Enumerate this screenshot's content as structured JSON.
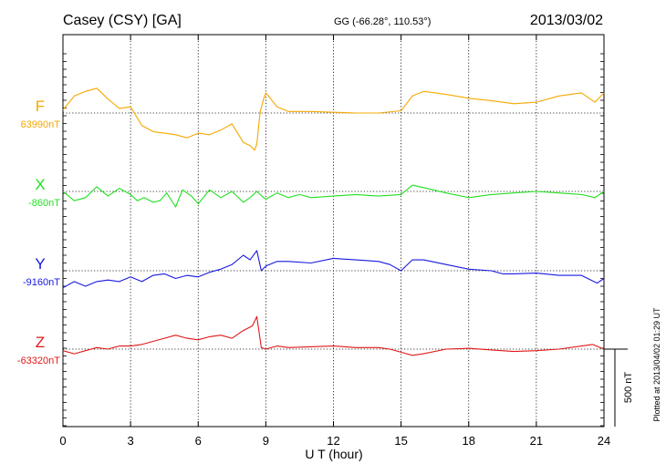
{
  "header": {
    "station": "Casey (CSY)  [GA]",
    "coords": "GG (-66.28°, 110.53°)",
    "date": "2013/03/02"
  },
  "footer": {
    "plotted": "Plotted at 2013/04/02 01:29 UT"
  },
  "chart_data": {
    "type": "line",
    "title": "Casey (CSY)  [GA]",
    "xlabel": "U T (hour)",
    "xlim": [
      0,
      24
    ],
    "x_ticks": [
      0,
      3,
      6,
      9,
      12,
      15,
      18,
      21,
      24
    ],
    "x_tick_labels": [
      "0",
      "3",
      "6",
      "9",
      "12",
      "15",
      "18",
      "21",
      "24"
    ],
    "grid": true,
    "scale_bar": {
      "label": "500 nT",
      "value_nT": 500
    },
    "series": [
      {
        "name": "F",
        "baseline_label": "63990nT",
        "baseline_nT": 63990,
        "color": "#f5a800",
        "points": [
          [
            0,
            64010
          ],
          [
            0.5,
            64100
          ],
          [
            1,
            64130
          ],
          [
            1.5,
            64150
          ],
          [
            2,
            64080
          ],
          [
            2.5,
            64020
          ],
          [
            3,
            64030
          ],
          [
            3.5,
            63910
          ],
          [
            4,
            63870
          ],
          [
            4.5,
            63860
          ],
          [
            5,
            63850
          ],
          [
            5.5,
            63830
          ],
          [
            6,
            63860
          ],
          [
            6.5,
            63850
          ],
          [
            7,
            63880
          ],
          [
            7.5,
            63920
          ],
          [
            8,
            63800
          ],
          [
            8.3,
            63780
          ],
          [
            8.5,
            63750
          ],
          [
            8.6,
            63790
          ],
          [
            8.75,
            64000
          ],
          [
            8.9,
            64080
          ],
          [
            9,
            64120
          ],
          [
            9.5,
            64030
          ],
          [
            10,
            64000
          ],
          [
            11,
            64000
          ],
          [
            12,
            63995
          ],
          [
            13,
            63990
          ],
          [
            14,
            63990
          ],
          [
            15,
            64005
          ],
          [
            15.5,
            64100
          ],
          [
            16,
            64130
          ],
          [
            17,
            64110
          ],
          [
            18,
            64085
          ],
          [
            19,
            64070
          ],
          [
            20,
            64050
          ],
          [
            21,
            64060
          ],
          [
            22,
            64100
          ],
          [
            23,
            64120
          ],
          [
            23.6,
            64060
          ],
          [
            24,
            64120
          ]
        ]
      },
      {
        "name": "X",
        "baseline_label": "-860nT",
        "baseline_nT": -860,
        "color": "#22e022",
        "points": [
          [
            0,
            -860
          ],
          [
            0.5,
            -920
          ],
          [
            1,
            -900
          ],
          [
            1.5,
            -830
          ],
          [
            2,
            -890
          ],
          [
            2.5,
            -840
          ],
          [
            3,
            -880
          ],
          [
            3.3,
            -920
          ],
          [
            3.6,
            -900
          ],
          [
            4,
            -930
          ],
          [
            4.3,
            -920
          ],
          [
            4.6,
            -870
          ],
          [
            5,
            -960
          ],
          [
            5.3,
            -850
          ],
          [
            5.7,
            -890
          ],
          [
            6,
            -940
          ],
          [
            6.5,
            -850
          ],
          [
            7,
            -900
          ],
          [
            7.5,
            -860
          ],
          [
            8,
            -930
          ],
          [
            8.3,
            -900
          ],
          [
            8.6,
            -860
          ],
          [
            8.9,
            -900
          ],
          [
            9,
            -910
          ],
          [
            9.5,
            -870
          ],
          [
            10,
            -900
          ],
          [
            10.5,
            -880
          ],
          [
            11,
            -900
          ],
          [
            12,
            -890
          ],
          [
            13,
            -880
          ],
          [
            14,
            -890
          ],
          [
            15,
            -880
          ],
          [
            15.5,
            -820
          ],
          [
            16,
            -835
          ],
          [
            17,
            -870
          ],
          [
            18,
            -900
          ],
          [
            19,
            -880
          ],
          [
            20,
            -870
          ],
          [
            21,
            -860
          ],
          [
            22,
            -870
          ],
          [
            23,
            -880
          ],
          [
            23.6,
            -900
          ],
          [
            24,
            -860
          ]
        ]
      },
      {
        "name": "Y",
        "baseline_label": "-9160nT",
        "baseline_nT": -9160,
        "color": "#1818e0",
        "points": [
          [
            0,
            -9270
          ],
          [
            0.5,
            -9230
          ],
          [
            1,
            -9260
          ],
          [
            1.5,
            -9230
          ],
          [
            2,
            -9220
          ],
          [
            2.5,
            -9230
          ],
          [
            3,
            -9200
          ],
          [
            3.5,
            -9230
          ],
          [
            4,
            -9190
          ],
          [
            4.5,
            -9180
          ],
          [
            5,
            -9210
          ],
          [
            5.5,
            -9190
          ],
          [
            6,
            -9200
          ],
          [
            6.5,
            -9170
          ],
          [
            7,
            -9150
          ],
          [
            7.5,
            -9120
          ],
          [
            8,
            -9060
          ],
          [
            8.3,
            -9090
          ],
          [
            8.6,
            -9030
          ],
          [
            8.8,
            -9160
          ],
          [
            9,
            -9130
          ],
          [
            9.5,
            -9100
          ],
          [
            10,
            -9100
          ],
          [
            11,
            -9110
          ],
          [
            12,
            -9080
          ],
          [
            13,
            -9090
          ],
          [
            14,
            -9100
          ],
          [
            14.5,
            -9120
          ],
          [
            15,
            -9160
          ],
          [
            15.5,
            -9090
          ],
          [
            16,
            -9090
          ],
          [
            17,
            -9120
          ],
          [
            18,
            -9150
          ],
          [
            19,
            -9160
          ],
          [
            19.5,
            -9180
          ],
          [
            20,
            -9180
          ],
          [
            21,
            -9175
          ],
          [
            22,
            -9190
          ],
          [
            23,
            -9190
          ],
          [
            23.7,
            -9240
          ],
          [
            24,
            -9210
          ]
        ]
      },
      {
        "name": "Z",
        "baseline_label": "-63320nT",
        "baseline_nT": -63320,
        "color": "#e01818",
        "points": [
          [
            0,
            -63330
          ],
          [
            0.5,
            -63350
          ],
          [
            1,
            -63330
          ],
          [
            1.5,
            -63310
          ],
          [
            2,
            -63320
          ],
          [
            2.5,
            -63300
          ],
          [
            3,
            -63300
          ],
          [
            3.5,
            -63290
          ],
          [
            4,
            -63270
          ],
          [
            4.5,
            -63250
          ],
          [
            5,
            -63230
          ],
          [
            5.5,
            -63250
          ],
          [
            6,
            -63260
          ],
          [
            6.5,
            -63240
          ],
          [
            7,
            -63230
          ],
          [
            7.5,
            -63250
          ],
          [
            8,
            -63200
          ],
          [
            8.4,
            -63170
          ],
          [
            8.6,
            -63110
          ],
          [
            8.8,
            -63310
          ],
          [
            9,
            -63320
          ],
          [
            9.5,
            -63300
          ],
          [
            10,
            -63310
          ],
          [
            11,
            -63305
          ],
          [
            12,
            -63300
          ],
          [
            13,
            -63310
          ],
          [
            14,
            -63310
          ],
          [
            14.5,
            -63320
          ],
          [
            15,
            -63340
          ],
          [
            15.5,
            -63360
          ],
          [
            16,
            -63350
          ],
          [
            17,
            -63320
          ],
          [
            18,
            -63315
          ],
          [
            19,
            -63325
          ],
          [
            20,
            -63335
          ],
          [
            21,
            -63330
          ],
          [
            22,
            -63320
          ],
          [
            23,
            -63300
          ],
          [
            23.5,
            -63290
          ],
          [
            24,
            -63320
          ]
        ]
      }
    ]
  }
}
